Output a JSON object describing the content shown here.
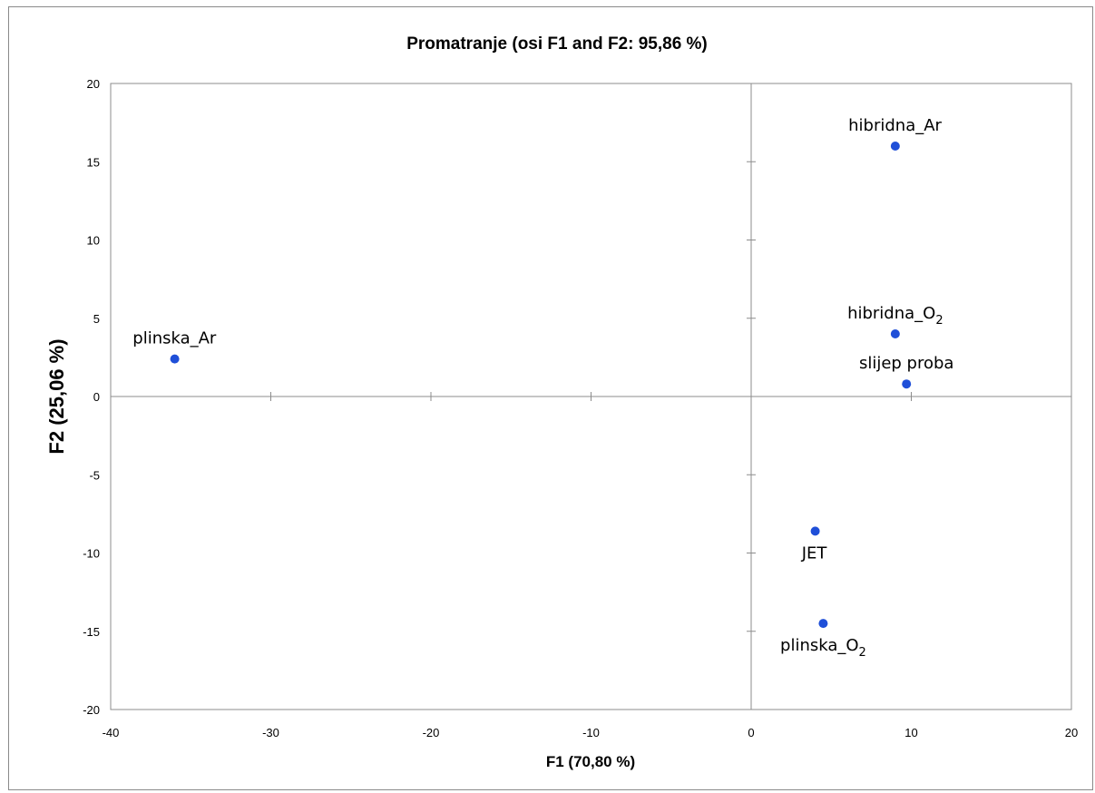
{
  "chart_data": {
    "type": "scatter",
    "title": "Promatranje  (osi F1 and F2: 95,86 %)",
    "xlabel": "F1 (70,80 %)",
    "ylabel": "F2 (25,06 %)",
    "xlim": [
      -40,
      20
    ],
    "ylim": [
      -20,
      20
    ],
    "x_ticks": [
      -40,
      -30,
      -20,
      -10,
      0,
      10,
      20
    ],
    "y_ticks": [
      -20,
      -15,
      -10,
      -5,
      0,
      5,
      10,
      15,
      20
    ],
    "grid": false,
    "marker_color": "#1f4fd8",
    "points": [
      {
        "label": "plinska_Ar",
        "label_base": "plinska_Ar",
        "label_sub": "",
        "x": -36.0,
        "y": 2.4,
        "label_pos": "above"
      },
      {
        "label": "hibridna_Ar",
        "label_base": "hibridna_Ar",
        "label_sub": "",
        "x": 9.0,
        "y": 16.0,
        "label_pos": "above"
      },
      {
        "label": "hibridna_O2",
        "label_base": "hibridna_O",
        "label_sub": "2",
        "x": 9.0,
        "y": 4.0,
        "label_pos": "above"
      },
      {
        "label": "slijep proba",
        "label_base": "slijep proba",
        "label_sub": "",
        "x": 9.7,
        "y": 0.8,
        "label_pos": "above"
      },
      {
        "label": "JET",
        "label_base": "JET",
        "label_sub": "",
        "x": 4.0,
        "y": -8.6,
        "label_pos": "below"
      },
      {
        "label": "plinska_O2",
        "label_base": "plinska_O",
        "label_sub": "2",
        "x": 4.5,
        "y": -14.5,
        "label_pos": "below"
      }
    ]
  }
}
